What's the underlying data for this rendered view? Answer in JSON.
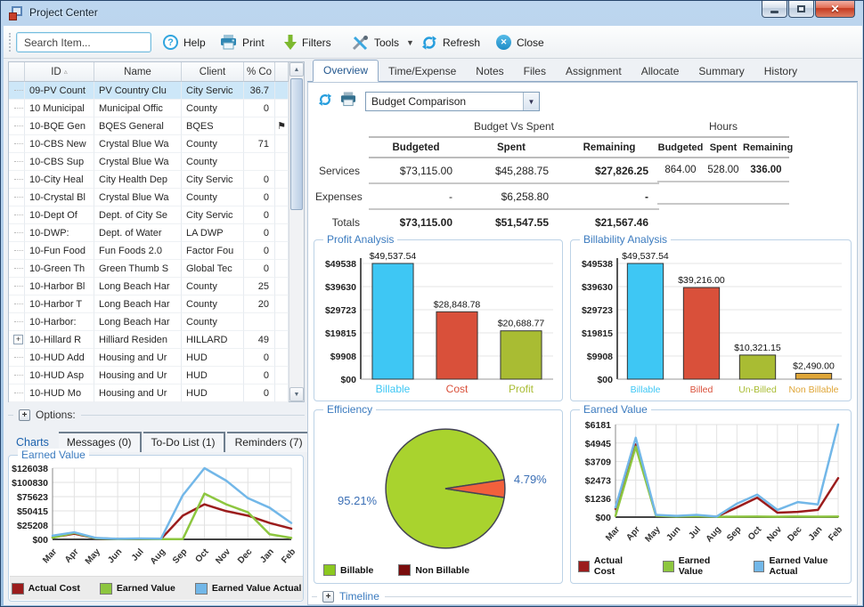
{
  "window": {
    "title": "Project Center"
  },
  "toolbar": {
    "search_placeholder": "Search Item...",
    "items": [
      "Help",
      "Print",
      "Filters",
      "Tools",
      "Refresh",
      "Close"
    ]
  },
  "project_table": {
    "columns": [
      "ID",
      "Name",
      "Client",
      "% Co"
    ],
    "rows": [
      {
        "id": "09-PV Count",
        "name": "PV Country Clu",
        "client": "City Servic",
        "pct": "36.7",
        "selected": true,
        "flag": false,
        "expand": false
      },
      {
        "id": "10 Municipal",
        "name": "Municipal Offic",
        "client": "County",
        "pct": "0",
        "selected": false,
        "flag": false,
        "expand": false
      },
      {
        "id": "10-BQE Gen",
        "name": "BQES General",
        "client": "BQES",
        "pct": "",
        "selected": false,
        "flag": true,
        "expand": false
      },
      {
        "id": "10-CBS New",
        "name": "Crystal Blue Wa",
        "client": "County",
        "pct": "71",
        "selected": false,
        "flag": false,
        "expand": false
      },
      {
        "id": "10-CBS Sup",
        "name": "Crystal Blue Wa",
        "client": "County",
        "pct": "",
        "selected": false,
        "flag": false,
        "expand": false
      },
      {
        "id": "10-City Heal",
        "name": "City Health Dep",
        "client": "City Servic",
        "pct": "0",
        "selected": false,
        "flag": false,
        "expand": false
      },
      {
        "id": "10-Crystal Bl",
        "name": "Crystal Blue Wa",
        "client": "County",
        "pct": "0",
        "selected": false,
        "flag": false,
        "expand": false
      },
      {
        "id": "10-Dept Of",
        "name": "Dept. of City Se",
        "client": "City Servic",
        "pct": "0",
        "selected": false,
        "flag": false,
        "expand": false
      },
      {
        "id": "10-DWP:",
        "name": "Dept. of Water",
        "client": "LA DWP",
        "pct": "0",
        "selected": false,
        "flag": false,
        "expand": false
      },
      {
        "id": "10-Fun Food",
        "name": "Fun Foods 2.0",
        "client": "Factor Fou",
        "pct": "0",
        "selected": false,
        "flag": false,
        "expand": false
      },
      {
        "id": "10-Green Th",
        "name": "Green Thumb S",
        "client": "Global Tec",
        "pct": "0",
        "selected": false,
        "flag": false,
        "expand": false
      },
      {
        "id": "10-Harbor Bl",
        "name": "Long Beach Har",
        "client": "County",
        "pct": "25",
        "selected": false,
        "flag": false,
        "expand": false
      },
      {
        "id": "10-Harbor T",
        "name": "Long Beach Har",
        "client": "County",
        "pct": "20",
        "selected": false,
        "flag": false,
        "expand": false
      },
      {
        "id": "10-Harbor:",
        "name": "Long Beach Har",
        "client": "County",
        "pct": "",
        "selected": false,
        "flag": false,
        "expand": false
      },
      {
        "id": "10-Hillard R",
        "name": "Hilliard Residen",
        "client": "HILLARD",
        "pct": "49",
        "selected": false,
        "flag": false,
        "expand": true
      },
      {
        "id": "10-HUD Add",
        "name": "Housing and Ur",
        "client": "HUD",
        "pct": "0",
        "selected": false,
        "flag": false,
        "expand": false
      },
      {
        "id": "10-HUD Asp",
        "name": "Housing and Ur",
        "client": "HUD",
        "pct": "0",
        "selected": false,
        "flag": false,
        "expand": false
      },
      {
        "id": "10-HUD Mo",
        "name": "Housing and Ur",
        "client": "HUD",
        "pct": "0",
        "selected": false,
        "flag": false,
        "expand": false
      }
    ]
  },
  "options_label": "Options:",
  "left_tabs": [
    "Charts",
    "Messages  (0)",
    "To-Do List  (1)",
    "Reminders  (7)"
  ],
  "right_tabs": [
    "Overview",
    "Time/Expense",
    "Notes",
    "Files",
    "Assignment",
    "Allocate",
    "Summary",
    "History"
  ],
  "overview": {
    "report_selector": "Budget Comparison",
    "budget_vs_spent": {
      "title": "Budget Vs Spent",
      "headers": [
        "Budgeted",
        "Spent",
        "Remaining"
      ],
      "row_labels": [
        "Services",
        "Expenses",
        "Totals"
      ],
      "rows": [
        [
          "$73,115.00",
          "$45,288.75",
          "$27,826.25"
        ],
        [
          "-",
          "$6,258.80",
          "-"
        ],
        [
          "$73,115.00",
          "$51,547.55",
          "$21,567.46"
        ]
      ]
    },
    "hours": {
      "title": "Hours",
      "headers": [
        "Budgeted",
        "Spent",
        "Remaining"
      ],
      "rows": [
        [
          "864.00",
          "528.00",
          "336.00"
        ]
      ]
    },
    "timeline_label": "Timeline"
  },
  "chart_data": [
    {
      "type": "bar",
      "title": "Profit Analysis",
      "categories": [
        "Billable",
        "Cost",
        "Profit"
      ],
      "values": [
        49537.54,
        28848.78,
        20688.77
      ],
      "value_labels": [
        "$49,537.54",
        "$28,848.78",
        "$20,688.77"
      ],
      "colors": [
        "#3ec7f4",
        "#d9503a",
        "#a9bc33"
      ],
      "yticks": [
        "$00",
        "$9908",
        "$19815",
        "$29723",
        "$39630",
        "$49538"
      ],
      "ymax": 49538
    },
    {
      "type": "bar",
      "title": "Billability Analysis",
      "categories": [
        "Billable",
        "Billed",
        "Un-Billed",
        "Non Billable"
      ],
      "values": [
        49537.54,
        39216.0,
        10321.15,
        2490.0
      ],
      "value_labels": [
        "$49,537.54",
        "$39,216.00",
        "$10,321.15",
        "$2,490.00"
      ],
      "colors": [
        "#3ec7f4",
        "#d9503a",
        "#a9bc33",
        "#dfa638"
      ],
      "yticks": [
        "$00",
        "$9908",
        "$19815",
        "$29723",
        "$39630",
        "$49538"
      ],
      "ymax": 49538
    },
    {
      "type": "pie",
      "title": "Efficiency",
      "slices": [
        "Billable",
        "Non Billable"
      ],
      "values": [
        95.21,
        4.79
      ],
      "value_labels": [
        "95.21%",
        "4.79%"
      ],
      "colors": [
        "#a9d32e",
        "#f2603c"
      ],
      "legend": [
        {
          "label": "Billable",
          "color": "#8cc820"
        },
        {
          "label": "Non Billable",
          "color": "#7a0d0d"
        }
      ]
    },
    {
      "type": "line",
      "title": "Earned Value",
      "x": [
        "Mar",
        "Apr",
        "May",
        "Jun",
        "Jul",
        "Aug",
        "Sep",
        "Oct",
        "Nov",
        "Dec",
        "Jan",
        "Feb"
      ],
      "yticks": [
        "$00",
        "$1236",
        "$2473",
        "$3709",
        "$4945",
        "$6181"
      ],
      "ymax": 6181,
      "series": [
        {
          "name": "Actual Cost",
          "color": "#9b1c1c",
          "values": [
            550,
            4850,
            120,
            60,
            80,
            30,
            650,
            1300,
            300,
            350,
            480,
            2600
          ]
        },
        {
          "name": "Earned Value",
          "color": "#8dc63f",
          "values": [
            80,
            4700,
            100,
            40,
            60,
            20,
            30,
            40,
            25,
            40,
            30,
            40
          ]
        },
        {
          "name": "Earned Value Actual",
          "color": "#72b7e8",
          "values": [
            650,
            5300,
            150,
            80,
            150,
            40,
            900,
            1500,
            480,
            1000,
            850,
            6181
          ]
        }
      ]
    },
    {
      "type": "line",
      "title": "Earned Value",
      "x": [
        "Mar",
        "Apr",
        "May",
        "Jun",
        "Jul",
        "Aug",
        "Sep",
        "Oct",
        "Nov",
        "Dec",
        "Jan",
        "Feb"
      ],
      "yticks": [
        "$00",
        "$25208",
        "$50415",
        "$75623",
        "$100830",
        "$126038"
      ],
      "ymax": 126038,
      "series": [
        {
          "name": "Actual Cost",
          "color": "#9b1c1c",
          "values": [
            3500,
            10000,
            2000,
            800,
            1200,
            700,
            42000,
            62000,
            50000,
            42000,
            29000,
            19000
          ]
        },
        {
          "name": "Earned Value",
          "color": "#8dc63f",
          "values": [
            3000,
            11500,
            2000,
            500,
            800,
            400,
            300,
            81000,
            62000,
            48000,
            9000,
            2500
          ]
        },
        {
          "name": "Earned Value Actual",
          "color": "#72b7e8",
          "values": [
            6500,
            12500,
            2500,
            1000,
            1500,
            1200,
            78000,
            126038,
            104000,
            73000,
            56000,
            29000
          ]
        }
      ]
    }
  ]
}
